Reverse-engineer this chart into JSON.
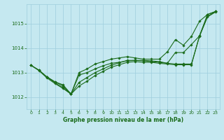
{
  "background_color": "#c5e8f0",
  "grid_color": "#9ecedd",
  "line_color": "#1a6b1a",
  "title": "Graphe pression niveau de la mer (hPa)",
  "xlim": [
    -0.5,
    23.5
  ],
  "ylim": [
    1011.5,
    1015.8
  ],
  "yticks": [
    1012,
    1013,
    1014,
    1015
  ],
  "xticks": [
    0,
    1,
    2,
    3,
    4,
    5,
    6,
    7,
    8,
    9,
    10,
    11,
    12,
    13,
    14,
    15,
    16,
    17,
    18,
    19,
    20,
    21,
    22,
    23
  ],
  "series": [
    {
      "x": [
        0,
        1,
        2,
        3,
        4,
        5,
        6,
        7,
        8,
        9,
        10,
        11,
        12,
        13,
        14,
        15,
        16,
        17,
        18,
        19,
        20,
        21,
        22,
        23
      ],
      "y": [
        1013.3,
        1013.1,
        1012.82,
        1012.62,
        1012.45,
        1012.12,
        1013.0,
        1013.15,
        1013.35,
        1013.45,
        1013.55,
        1013.6,
        1013.65,
        1013.6,
        1013.55,
        1013.55,
        1013.55,
        1013.85,
        1014.35,
        1014.12,
        1014.48,
        1015.1,
        1015.38,
        1015.5
      ]
    },
    {
      "x": [
        0,
        1,
        2,
        3,
        4,
        5,
        6,
        7,
        8,
        9,
        10,
        11,
        12,
        13,
        14,
        15,
        16,
        17,
        18,
        19,
        20,
        21,
        22,
        23
      ],
      "y": [
        1013.3,
        1013.1,
        1012.82,
        1012.62,
        1012.5,
        1012.12,
        1012.6,
        1012.8,
        1013.0,
        1013.15,
        1013.3,
        1013.4,
        1013.5,
        1013.5,
        1013.48,
        1013.45,
        1013.42,
        1013.38,
        1013.82,
        1013.82,
        1014.15,
        1014.5,
        1015.38,
        1015.5
      ]
    },
    {
      "x": [
        2,
        3,
        4,
        5,
        6,
        7,
        8,
        9,
        10,
        11,
        12,
        13,
        14,
        15,
        16,
        17,
        18,
        19,
        20,
        21,
        22,
        23
      ],
      "y": [
        1012.82,
        1012.58,
        1012.38,
        1012.12,
        1012.9,
        1013.0,
        1013.15,
        1013.28,
        1013.38,
        1013.42,
        1013.48,
        1013.5,
        1013.5,
        1013.48,
        1013.45,
        1013.38,
        1013.35,
        1013.35,
        1013.35,
        1014.48,
        1015.28,
        1015.48
      ]
    },
    {
      "x": [
        0,
        1,
        2,
        3,
        4,
        5,
        6,
        7,
        8,
        9,
        10,
        11,
        12,
        13,
        14,
        15,
        16,
        17,
        18,
        19,
        20,
        21,
        22,
        23
      ],
      "y": [
        1013.3,
        1013.08,
        1012.78,
        1012.55,
        1012.35,
        1012.12,
        1012.45,
        1012.65,
        1012.88,
        1013.05,
        1013.22,
        1013.32,
        1013.42,
        1013.45,
        1013.42,
        1013.42,
        1013.38,
        1013.35,
        1013.32,
        1013.32,
        1013.32,
        1014.5,
        1015.3,
        1015.5
      ]
    }
  ]
}
